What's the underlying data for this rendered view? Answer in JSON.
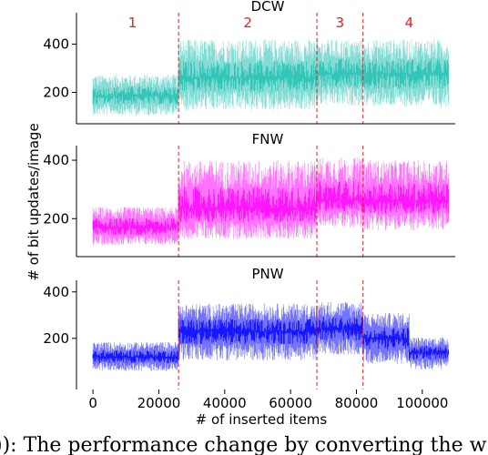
{
  "chart_data": [
    {
      "type": "line",
      "title": "DCW",
      "color": "#20c0b0",
      "ylim": [
        70,
        530
      ],
      "yticks": [
        200,
        400
      ],
      "xlim": [
        -5000,
        110000
      ],
      "boundaries": [
        26000,
        68000,
        82000
      ],
      "boundary_color": "#e02020",
      "region_labels": [
        "1",
        "2",
        "3",
        "4"
      ],
      "region_label_x": [
        12000,
        47000,
        75000,
        96000
      ],
      "series": [
        {
          "x_range": [
            0,
            26000
          ],
          "mean": 185,
          "min": 105,
          "max": 275
        },
        {
          "x_range": [
            26000,
            68000
          ],
          "mean": 260,
          "min": 125,
          "max": 420
        },
        {
          "x_range": [
            68000,
            82000
          ],
          "mean": 275,
          "min": 145,
          "max": 420
        },
        {
          "x_range": [
            82000,
            108000
          ],
          "mean": 275,
          "min": 140,
          "max": 420
        }
      ]
    },
    {
      "type": "line",
      "title": "FNW",
      "color": "#ff00ff",
      "ylim": [
        70,
        450
      ],
      "yticks": [
        200,
        400
      ],
      "xlim": [
        -5000,
        110000
      ],
      "boundaries": [
        26000,
        68000,
        82000
      ],
      "boundary_color": "#e02020",
      "series": [
        {
          "x_range": [
            0,
            26000
          ],
          "mean": 170,
          "min": 110,
          "max": 240
        },
        {
          "x_range": [
            26000,
            68000
          ],
          "mean": 235,
          "min": 130,
          "max": 400
        },
        {
          "x_range": [
            68000,
            82000
          ],
          "mean": 265,
          "min": 170,
          "max": 410
        },
        {
          "x_range": [
            82000,
            108000
          ],
          "mean": 260,
          "min": 160,
          "max": 400
        }
      ]
    },
    {
      "type": "line",
      "title": "PNW",
      "color": "#0000ff",
      "ylim": [
        -20,
        450
      ],
      "yticks": [
        200,
        400
      ],
      "xlim": [
        -5000,
        110000
      ],
      "xticks": [
        0,
        20000,
        40000,
        60000,
        80000,
        100000
      ],
      "xlabel": "# of inserted items",
      "boundaries": [
        26000,
        68000,
        82000
      ],
      "boundary_color": "#e02020",
      "series": [
        {
          "x_range": [
            0,
            26000
          ],
          "mean": 120,
          "min": 60,
          "max": 185
        },
        {
          "x_range": [
            26000,
            68000
          ],
          "mean": 230,
          "min": 105,
          "max": 350
        },
        {
          "x_range": [
            68000,
            82000
          ],
          "mean": 240,
          "min": 130,
          "max": 360
        },
        {
          "x_range": [
            82000,
            96000
          ],
          "mean": 200,
          "min": 90,
          "max": 310
        },
        {
          "x_range": [
            96000,
            108000
          ],
          "mean": 140,
          "min": 65,
          "max": 205
        }
      ]
    }
  ],
  "ylabel": "# of bit updates/image",
  "caption": ")): The performance change by converting the w"
}
